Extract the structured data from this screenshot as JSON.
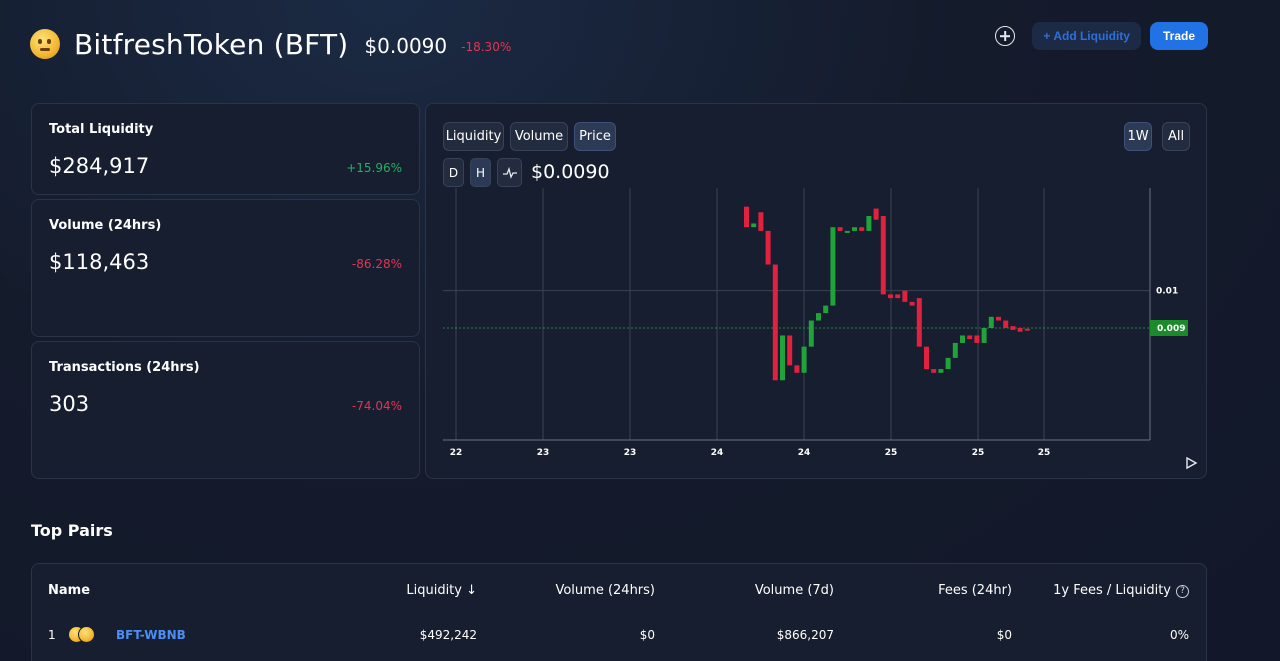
{
  "header": {
    "token_name": "BitfreshToken (BFT)",
    "price": "$0.0090",
    "change": "-18.30%",
    "add_liquidity_label": "+ Add Liquidity",
    "trade_label": "Trade"
  },
  "stats": [
    {
      "title": "Total Liquidity",
      "value": "$284,917",
      "change": "+15.96%",
      "direction": "up"
    },
    {
      "title": "Volume (24hrs)",
      "value": "$118,463",
      "change": "-86.28%",
      "direction": "down"
    },
    {
      "title": "Transactions (24hrs)",
      "value": "303",
      "change": "-74.04%",
      "direction": "down"
    }
  ],
  "chart": {
    "tabs": [
      "Liquidity",
      "Volume",
      "Price"
    ],
    "active_tab": "Price",
    "ranges": [
      "1W",
      "All"
    ],
    "active_range": "1W",
    "interval_buttons": [
      "D",
      "H"
    ],
    "active_interval": "H",
    "line_toggle_icon": "line-chart-icon",
    "current_price": "$0.0090"
  },
  "chart_data": {
    "type": "candlestick",
    "x_tick_labels": [
      "22",
      "23",
      "23",
      "24",
      "24",
      "25",
      "25",
      "25"
    ],
    "y_tick_labels": [
      "0.01"
    ],
    "y_range": [
      0.006,
      0.01275
    ],
    "current_price_label": "0.009",
    "current_price_value": 0.009,
    "colors": {
      "up": "#1fa33a",
      "down": "#e2213f",
      "current_label_bg": "#1b8a2b"
    },
    "candles": [
      {
        "open": 0.01225,
        "close": 0.0117
      },
      {
        "open": 0.0117,
        "close": 0.0118
      },
      {
        "open": 0.0121,
        "close": 0.0116
      },
      {
        "open": 0.0116,
        "close": 0.0107
      },
      {
        "open": 0.0107,
        "close": 0.0076
      },
      {
        "open": 0.0076,
        "close": 0.0088
      },
      {
        "open": 0.0088,
        "close": 0.008
      },
      {
        "open": 0.008,
        "close": 0.0078
      },
      {
        "open": 0.0078,
        "close": 0.0085
      },
      {
        "open": 0.0085,
        "close": 0.0092
      },
      {
        "open": 0.0092,
        "close": 0.0094
      },
      {
        "open": 0.0094,
        "close": 0.0096
      },
      {
        "open": 0.0096,
        "close": 0.0117
      },
      {
        "open": 0.0117,
        "close": 0.0116
      },
      {
        "open": 0.0116,
        "close": 0.0116
      },
      {
        "open": 0.0116,
        "close": 0.0117
      },
      {
        "open": 0.0117,
        "close": 0.0116
      },
      {
        "open": 0.0116,
        "close": 0.012
      },
      {
        "open": 0.0122,
        "close": 0.0119
      },
      {
        "open": 0.012,
        "close": 0.0099
      },
      {
        "open": 0.0099,
        "close": 0.0098
      },
      {
        "open": 0.0099,
        "close": 0.0098
      },
      {
        "open": 0.01,
        "close": 0.0097
      },
      {
        "open": 0.0097,
        "close": 0.0096
      },
      {
        "open": 0.0098,
        "close": 0.0085
      },
      {
        "open": 0.0085,
        "close": 0.0079
      },
      {
        "open": 0.0079,
        "close": 0.0078
      },
      {
        "open": 0.0078,
        "close": 0.0079
      },
      {
        "open": 0.0079,
        "close": 0.0082
      },
      {
        "open": 0.0082,
        "close": 0.0086
      },
      {
        "open": 0.0086,
        "close": 0.0088
      },
      {
        "open": 0.0088,
        "close": 0.0087
      },
      {
        "open": 0.0088,
        "close": 0.0086
      },
      {
        "open": 0.0086,
        "close": 0.009
      },
      {
        "open": 0.009,
        "close": 0.0093
      },
      {
        "open": 0.0093,
        "close": 0.0092
      },
      {
        "open": 0.0092,
        "close": 0.009
      },
      {
        "open": 0.00905,
        "close": 0.00895
      },
      {
        "open": 0.009,
        "close": 0.0089
      },
      {
        "open": 0.00898,
        "close": 0.00893
      }
    ]
  },
  "top_pairs": {
    "title": "Top Pairs",
    "columns": [
      "Name",
      "Liquidity ↓",
      "Volume (24hrs)",
      "Volume (7d)",
      "Fees (24hr)",
      "1y Fees / Liquidity"
    ],
    "help_icon": "help-icon",
    "rows": [
      {
        "index": "1",
        "pair": "BFT-WBNB",
        "liquidity": "$492,242",
        "volume_24h": "$0",
        "volume_7d": "$866,207",
        "fees_24h": "$0",
        "fees_liquidity": "0%"
      }
    ]
  }
}
